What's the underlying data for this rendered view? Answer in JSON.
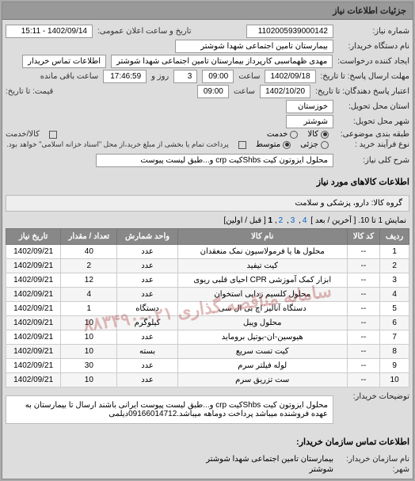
{
  "panelTitle": "جزئیات اطلاعات نیاز",
  "header": {
    "reqNoLabel": "شماره نیاز:",
    "reqNo": "1102005939000142",
    "announceLabel": "تاریخ و ساعت اعلان عمومی:",
    "announceVal": "1402/09/14 - 15:11",
    "buyerOrgLabel": "نام دستگاه خریدار:",
    "buyerOrg": "بیمارستان تامین اجتماعی شهدا شوشتر",
    "requesterLabel": "ایجاد کننده درخواست:",
    "requester": "مهدی ظهماسبی کارپرداز بیمارستان تامین اجتماعی شهدا شوشتر",
    "buyerContactLabel": "اطلاعات تماس خریدار",
    "deadlineLabel": "مهلت ارسال پاسخ: تا تاریخ:",
    "deadlineDate": "1402/09/18",
    "timeLabel": "ساعت",
    "deadlineTime": "09:00",
    "remainDayLabel": "روز و",
    "remainDays": "3",
    "remainTime": "17:46:59",
    "remainSuffix": "ساعت باقی مانده",
    "validUntilLabel": "اعتبار پاسخ دهندگان: تا تاریخ:",
    "validDate": "1402/10/20",
    "validTime": "09:00",
    "deliverProvLabel": "استان محل تحویل:",
    "deliverProv": "خوزستان",
    "deliverCityLabel": "شهر محل تحویل:",
    "deliverCity": "شوشتر",
    "priceLabel": "قیمت: تا تاریخ:",
    "pkgLabel": "طبقه بندی موضوعی:",
    "pkgAll": "کالا",
    "pkgPart": "خدمت",
    "cashCreditLabel": "کالا/خدمت",
    "buyTypeLabel": "نوع فرآیند خرید :",
    "buyLow": "جزئی",
    "buyMid": "متوسط",
    "payNote": "پرداخت تمام یا بخشی از مبلغ خرید،از محل \"اسناد خزانه اسلامی\" خواهد بود.",
    "generalDescLabel": "شرح کلی نیاز:",
    "generalDesc": "محلول ایزوتون کیت Shbsکیت crp و...طبق لیست پیوست"
  },
  "goodsSectionTitle": "اطلاعات کالاهای مورد نیاز",
  "groupLabel": "گروه کالا:",
  "groupVal": "دارو، پزشکی و سلامت",
  "pager": {
    "text": "نمایش 1 تا 10.  [ آخرین / بعد ]",
    "links": [
      "4",
      "3",
      "2"
    ],
    "current": "1",
    "tail": "[ قبل / اولین]"
  },
  "columns": [
    "ردیف",
    "کد کالا",
    "نام کالا",
    "واحد شمارش",
    "تعداد / مقدار",
    "تاریخ نیاز"
  ],
  "rows": [
    [
      "1",
      "--",
      "محلول ها یا فرمولاسیون نمک منعقدان",
      "عدد",
      "40",
      "1402/09/21"
    ],
    [
      "2",
      "--",
      "کیت تیفید",
      "عدد",
      "2",
      "1402/09/21"
    ],
    [
      "3",
      "--",
      "ابزار کمک آموزشی CPR احیای قلبی ریوی",
      "عدد",
      "12",
      "1402/09/21"
    ],
    [
      "4",
      "--",
      "محلول کلسیم زدایی استخوان",
      "عدد",
      "4",
      "1402/09/21"
    ],
    [
      "5",
      "--",
      "دستگاه آنالیز اچ بی ال سی",
      "دستگاه",
      "1",
      "1402/09/21"
    ],
    [
      "6",
      "--",
      "محلول ویبل",
      "کیلوگرم",
      "10",
      "1402/09/21"
    ],
    [
      "7",
      "--",
      "هیوسین-ان-بوتیل بروماید",
      "عدد",
      "10",
      "1402/09/21"
    ],
    [
      "8",
      "--",
      "کیت تست سریع",
      "بسته",
      "10",
      "1402/09/21"
    ],
    [
      "9",
      "--",
      "لوله فیلتر سرم",
      "عدد",
      "30",
      "1402/09/21"
    ],
    [
      "10",
      "--",
      "ست تزریق سرم",
      "عدد",
      "10",
      "1402/09/21"
    ]
  ],
  "buyerDescLabel": "توضیحات خریدار:",
  "buyerDesc": "محلول ایزوتون کیت Shbsکیت crp و...طبق لیست پیوست ایرانی باشند ارسال تا بیمارستان به عهده فروشنده میباشد پرداخت دوماهه میباشد.09166014712دیلمی",
  "contactTitle": "اطلاعات تماس سازمان خریدار:",
  "orgNameLabel": "نام سازمان خریدار:",
  "orgName": "بیمارستان تامین اجتماعی شهدا شوشتر",
  "cityLabel": "شهر:",
  "city": "شوشتر",
  "watermark": "سامانه مناقصه گذاری  ۰۲۱-۸۸۳۴۹۰"
}
